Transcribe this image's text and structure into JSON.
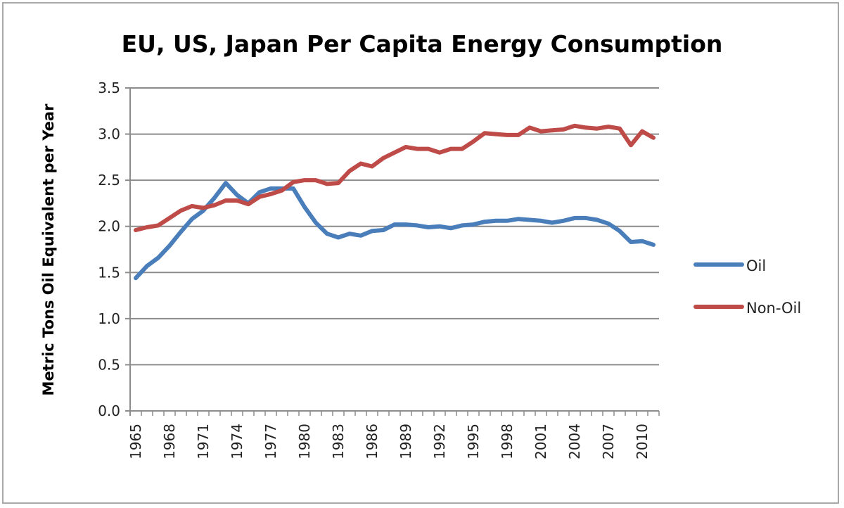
{
  "chart_data": {
    "type": "line",
    "title": "EU, US, Japan Per Capita Energy Consumption",
    "xlabel": "",
    "ylabel": "Metric Tons Oil Equivalent per Year",
    "ylim": [
      0,
      3.5
    ],
    "yticks": [
      0.0,
      0.5,
      1.0,
      1.5,
      2.0,
      2.5,
      3.0,
      3.5
    ],
    "ytick_labels": [
      "0.0",
      "0.5",
      "1.0",
      "1.5",
      "2.0",
      "2.5",
      "3.0",
      "3.5"
    ],
    "x": [
      1965,
      1966,
      1967,
      1968,
      1969,
      1970,
      1971,
      1972,
      1973,
      1974,
      1975,
      1976,
      1977,
      1978,
      1979,
      1980,
      1981,
      1982,
      1983,
      1984,
      1985,
      1986,
      1987,
      1988,
      1989,
      1990,
      1991,
      1992,
      1993,
      1994,
      1995,
      1996,
      1997,
      1998,
      1999,
      2000,
      2001,
      2002,
      2003,
      2004,
      2005,
      2006,
      2007,
      2008,
      2009,
      2010,
      2011
    ],
    "xtick_labels": [
      "1965",
      "1968",
      "1971",
      "1974",
      "1977",
      "1980",
      "1983",
      "1986",
      "1989",
      "1992",
      "1995",
      "1998",
      "2001",
      "2004",
      "2007",
      "2010"
    ],
    "grid": "horizontal",
    "legend_position": "right",
    "series": [
      {
        "name": "Oil",
        "color": "#4a7ebb",
        "values": [
          1.44,
          1.57,
          1.66,
          1.79,
          1.94,
          2.08,
          2.17,
          2.31,
          2.47,
          2.34,
          2.25,
          2.37,
          2.41,
          2.41,
          2.41,
          2.21,
          2.04,
          1.92,
          1.88,
          1.92,
          1.9,
          1.95,
          1.96,
          2.02,
          2.02,
          2.01,
          1.99,
          2.0,
          1.98,
          2.01,
          2.02,
          2.05,
          2.06,
          2.06,
          2.08,
          2.07,
          2.06,
          2.04,
          2.06,
          2.09,
          2.09,
          2.07,
          2.03,
          1.95,
          1.83,
          1.84,
          1.8
        ]
      },
      {
        "name": "Non-Oil",
        "color": "#be4b48",
        "values": [
          1.96,
          1.99,
          2.01,
          2.09,
          2.17,
          2.22,
          2.2,
          2.23,
          2.28,
          2.28,
          2.24,
          2.32,
          2.35,
          2.39,
          2.48,
          2.5,
          2.5,
          2.46,
          2.47,
          2.6,
          2.68,
          2.65,
          2.74,
          2.8,
          2.86,
          2.84,
          2.84,
          2.8,
          2.84,
          2.84,
          2.92,
          3.01,
          3.0,
          2.99,
          2.99,
          3.07,
          3.03,
          3.04,
          3.05,
          3.09,
          3.07,
          3.06,
          3.08,
          3.06,
          2.88,
          3.03,
          2.96
        ]
      }
    ]
  }
}
